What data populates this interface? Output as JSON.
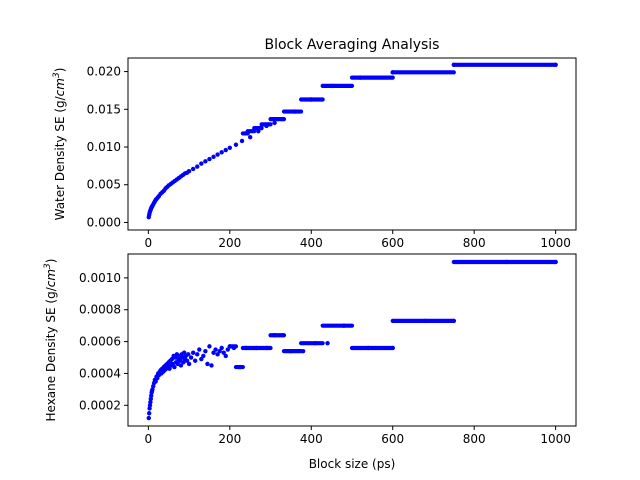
{
  "figure": {
    "title": "Block Averaging Analysis",
    "xlabel": "Block size (ps)"
  },
  "chart_data": [
    {
      "type": "scatter",
      "title": "Block Averaging Analysis",
      "xlabel": "",
      "ylabel": "Water Density SE (g/cm³)",
      "ylabel_parts": [
        "Water Density SE (g/",
        "cm",
        "3",
        ")"
      ],
      "xlim": [
        -50,
        1050
      ],
      "ylim": [
        -0.001,
        0.0218
      ],
      "xticks": [
        0,
        200,
        400,
        600,
        800,
        1000
      ],
      "xtick_labels": [
        "0",
        "200",
        "400",
        "600",
        "800",
        "1000"
      ],
      "yticks": [
        0.0,
        0.005,
        0.01,
        0.015,
        0.02
      ],
      "ytick_labels": [
        "0.000",
        "0.005",
        "0.010",
        "0.015",
        "0.020"
      ],
      "color": "#0000ff",
      "points": [
        [
          1,
          0.0007
        ],
        [
          2,
          0.001
        ],
        [
          3,
          0.00125
        ],
        [
          4,
          0.00145
        ],
        [
          5,
          0.0016
        ],
        [
          6,
          0.00175
        ],
        [
          7,
          0.0019
        ],
        [
          8,
          0.002
        ],
        [
          9,
          0.0021
        ],
        [
          10,
          0.0022
        ],
        [
          12,
          0.0024
        ],
        [
          14,
          0.0026
        ],
        [
          16,
          0.0028
        ],
        [
          18,
          0.003
        ],
        [
          20,
          0.0031
        ],
        [
          23,
          0.0033
        ],
        [
          26,
          0.0035
        ],
        [
          30,
          0.0038
        ],
        [
          34,
          0.004
        ],
        [
          38,
          0.0042
        ],
        [
          42,
          0.0045
        ],
        [
          46,
          0.0047
        ],
        [
          50,
          0.0049
        ],
        [
          55,
          0.0051
        ],
        [
          60,
          0.0053
        ],
        [
          65,
          0.0055
        ],
        [
          70,
          0.0057
        ],
        [
          75,
          0.0059
        ],
        [
          80,
          0.0061
        ],
        [
          85,
          0.0063
        ],
        [
          90,
          0.0065
        ],
        [
          95,
          0.0066
        ],
        [
          100,
          0.0068
        ],
        [
          110,
          0.0071
        ],
        [
          120,
          0.0074
        ],
        [
          130,
          0.0078
        ],
        [
          140,
          0.0081
        ],
        [
          150,
          0.0084
        ],
        [
          160,
          0.0087
        ],
        [
          170,
          0.009
        ],
        [
          180,
          0.0093
        ],
        [
          190,
          0.0096
        ],
        [
          200,
          0.0099
        ],
        [
          215,
          0.0103
        ],
        [
          230,
          0.0108
        ],
        [
          250,
          0.0113
        ],
        [
          270,
          0.0121
        ],
        [
          290,
          0.0128
        ],
        [
          310,
          0.0132
        ],
        [
          330,
          0.0137
        ],
        [
          360,
          0.0147
        ],
        [
          400,
          0.0163
        ],
        [
          450,
          0.0181
        ],
        [
          520,
          0.0192
        ],
        [
          600,
          0.0199
        ],
        [
          750,
          0.0209
        ],
        [
          1000,
          0.0209
        ]
      ],
      "steps": [
        {
          "x0": 232,
          "x1": 244,
          "y": 0.0118
        },
        {
          "x0": 244,
          "x1": 260,
          "y": 0.0121
        },
        {
          "x0": 260,
          "x1": 278,
          "y": 0.0125
        },
        {
          "x0": 278,
          "x1": 300,
          "y": 0.013
        },
        {
          "x0": 300,
          "x1": 333,
          "y": 0.0137
        },
        {
          "x0": 333,
          "x1": 375,
          "y": 0.0147
        },
        {
          "x0": 375,
          "x1": 428,
          "y": 0.0163
        },
        {
          "x0": 428,
          "x1": 500,
          "y": 0.0181
        },
        {
          "x0": 500,
          "x1": 600,
          "y": 0.0192
        },
        {
          "x0": 600,
          "x1": 750,
          "y": 0.0199
        },
        {
          "x0": 750,
          "x1": 1000,
          "y": 0.0209
        }
      ]
    },
    {
      "type": "scatter",
      "title": "",
      "xlabel": "Block size (ps)",
      "ylabel": "Hexane Density SE (g/cm³)",
      "ylabel_parts": [
        "Hexane Density SE (g/",
        "cm",
        "3",
        ")"
      ],
      "xlim": [
        -50,
        1050
      ],
      "ylim": [
        7e-05,
        0.00115
      ],
      "xticks": [
        0,
        200,
        400,
        600,
        800,
        1000
      ],
      "xtick_labels": [
        "0",
        "200",
        "400",
        "600",
        "800",
        "1000"
      ],
      "yticks": [
        0.0002,
        0.0004,
        0.0006,
        0.0008,
        0.001
      ],
      "ytick_labels": [
        "0.0002",
        "0.0004",
        "0.0006",
        "0.0008",
        "0.0010"
      ],
      "color": "#0000ff",
      "points": [
        [
          1,
          0.00012
        ],
        [
          2,
          0.00015
        ],
        [
          3,
          0.00018
        ],
        [
          4,
          0.0002
        ],
        [
          5,
          0.00022
        ],
        [
          6,
          0.00024
        ],
        [
          7,
          0.00026
        ],
        [
          8,
          0.00028
        ],
        [
          9,
          0.00029
        ],
        [
          10,
          0.0003
        ],
        [
          12,
          0.00032
        ],
        [
          14,
          0.00034
        ],
        [
          16,
          0.00036
        ],
        [
          18,
          0.00035
        ],
        [
          20,
          0.00038
        ],
        [
          22,
          0.00037
        ],
        [
          24,
          0.0004
        ],
        [
          26,
          0.00039
        ],
        [
          28,
          0.00041
        ],
        [
          30,
          0.00042
        ],
        [
          32,
          0.0004
        ],
        [
          34,
          0.00043
        ],
        [
          36,
          0.00041
        ],
        [
          38,
          0.00044
        ],
        [
          40,
          0.00042
        ],
        [
          42,
          0.00045
        ],
        [
          44,
          0.00043
        ],
        [
          46,
          0.00046
        ],
        [
          48,
          0.00044
        ],
        [
          50,
          0.00047
        ],
        [
          52,
          0.00043
        ],
        [
          54,
          0.00048
        ],
        [
          56,
          0.00045
        ],
        [
          58,
          0.00049
        ],
        [
          60,
          0.00046
        ],
        [
          62,
          0.00051
        ],
        [
          64,
          0.00044
        ],
        [
          66,
          0.0005
        ],
        [
          68,
          0.00047
        ],
        [
          70,
          0.00052
        ],
        [
          72,
          0.00046
        ],
        [
          74,
          0.00049
        ],
        [
          76,
          0.00051
        ],
        [
          78,
          0.00048
        ],
        [
          80,
          0.00045
        ],
        [
          82,
          0.00052
        ],
        [
          84,
          0.0005
        ],
        [
          86,
          0.00047
        ],
        [
          88,
          0.00053
        ],
        [
          90,
          0.00049
        ],
        [
          92,
          0.00051
        ],
        [
          95,
          0.00048
        ],
        [
          98,
          0.00052
        ],
        [
          100,
          0.00046
        ],
        [
          105,
          0.0005
        ],
        [
          110,
          0.00053
        ],
        [
          115,
          0.00048
        ],
        [
          120,
          0.00052
        ],
        [
          125,
          0.00055
        ],
        [
          130,
          0.00049
        ],
        [
          135,
          0.00051
        ],
        [
          140,
          0.00054
        ],
        [
          145,
          0.00046
        ],
        [
          150,
          0.00057
        ],
        [
          155,
          0.00045
        ],
        [
          160,
          0.00053
        ],
        [
          165,
          0.00055
        ],
        [
          170,
          0.00052
        ],
        [
          175,
          0.00054
        ],
        [
          180,
          0.00056
        ],
        [
          185,
          0.00053
        ],
        [
          190,
          0.00051
        ],
        [
          195,
          0.00055
        ],
        [
          200,
          0.00057
        ],
        [
          210,
          0.00056
        ],
        [
          225,
          0.00044
        ],
        [
          240,
          0.00056
        ],
        [
          265,
          0.00056
        ],
        [
          290,
          0.00056
        ],
        [
          310,
          0.00064
        ],
        [
          330,
          0.00064
        ],
        [
          350,
          0.00054
        ],
        [
          380,
          0.00054
        ],
        [
          410,
          0.00059
        ],
        [
          440,
          0.00059
        ],
        [
          480,
          0.0007
        ],
        [
          540,
          0.00056
        ],
        [
          600,
          0.00056
        ],
        [
          680,
          0.00073
        ],
        [
          750,
          0.00073
        ],
        [
          880,
          0.0011
        ],
        [
          1000,
          0.0011
        ]
      ],
      "steps": [
        {
          "x0": 200,
          "x1": 215,
          "y": 0.00057
        },
        {
          "x0": 215,
          "x1": 232,
          "y": 0.00044
        },
        {
          "x0": 232,
          "x1": 300,
          "y": 0.00056
        },
        {
          "x0": 300,
          "x1": 333,
          "y": 0.00064
        },
        {
          "x0": 333,
          "x1": 375,
          "y": 0.00054
        },
        {
          "x0": 375,
          "x1": 428,
          "y": 0.00059
        },
        {
          "x0": 428,
          "x1": 500,
          "y": 0.0007
        },
        {
          "x0": 500,
          "x1": 600,
          "y": 0.00056
        },
        {
          "x0": 600,
          "x1": 750,
          "y": 0.00073
        },
        {
          "x0": 750,
          "x1": 1000,
          "y": 0.0011
        }
      ]
    }
  ]
}
